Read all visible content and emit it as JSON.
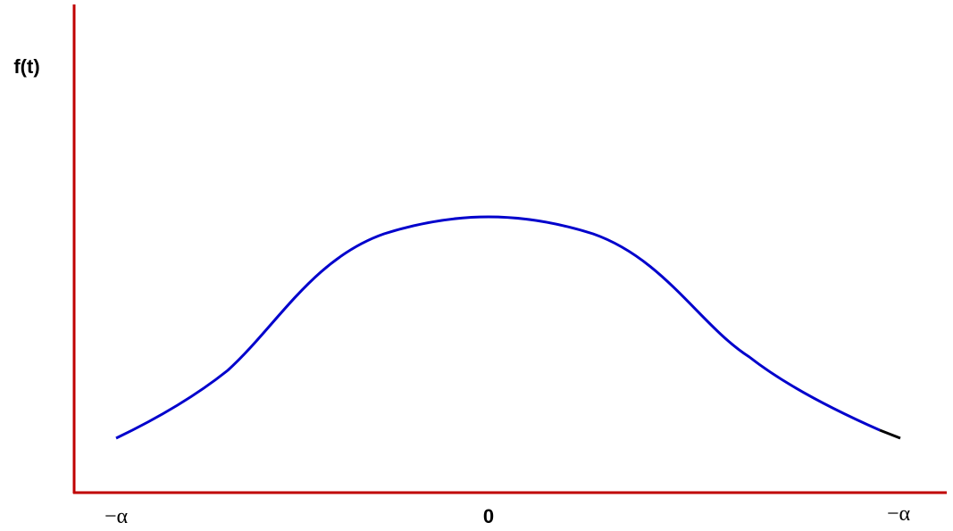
{
  "y_axis_label": "f(t)",
  "x_labels": [
    "−α",
    "0",
    "−α"
  ]
}
